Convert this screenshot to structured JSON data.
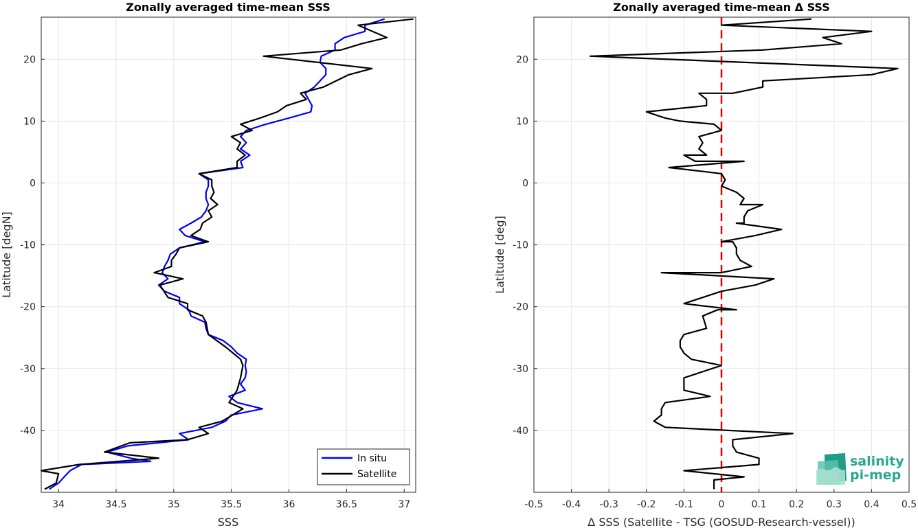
{
  "chart_data": [
    {
      "type": "line",
      "title": "Zonally averaged time-mean SSS",
      "xlabel": "SSS",
      "ylabel": "Latitude [degN]",
      "xlim": [
        33.85,
        37.1
      ],
      "ylim": [
        -50,
        26.8
      ],
      "xticks": [
        "34",
        "34.5",
        "35",
        "35.5",
        "36",
        "36.5",
        "37"
      ],
      "yticks": [
        "-40",
        "-30",
        "-20",
        "-10",
        "0",
        "10",
        "20"
      ],
      "grid": true,
      "legend": "bottom-right",
      "series": [
        {
          "name": "In situ",
          "color": "#0000ff",
          "points": [
            [
              36.83,
              26.5
            ],
            [
              36.66,
              25.5
            ],
            [
              36.66,
              24.5
            ],
            [
              36.48,
              23.5
            ],
            [
              36.4,
              22.5
            ],
            [
              36.4,
              21.5
            ],
            [
              36.28,
              20.5
            ],
            [
              36.27,
              19.5
            ],
            [
              36.32,
              18.5
            ],
            [
              36.32,
              17.5
            ],
            [
              36.27,
              16.5
            ],
            [
              36.22,
              15.5
            ],
            [
              36.14,
              14.5
            ],
            [
              36.17,
              13.5
            ],
            [
              36.2,
              12.5
            ],
            [
              36.19,
              11.5
            ],
            [
              36.0,
              10.5
            ],
            [
              35.8,
              9.5
            ],
            [
              35.63,
              8.5
            ],
            [
              35.58,
              7.5
            ],
            [
              35.63,
              6.5
            ],
            [
              35.58,
              5.5
            ],
            [
              35.66,
              4.5
            ],
            [
              35.58,
              3.5
            ],
            [
              35.6,
              2.5
            ],
            [
              35.22,
              1.5
            ],
            [
              35.3,
              0.5
            ],
            [
              35.3,
              -0.5
            ],
            [
              35.28,
              -1.5
            ],
            [
              35.28,
              -2.5
            ],
            [
              35.3,
              -3.5
            ],
            [
              35.28,
              -4.5
            ],
            [
              35.24,
              -5.5
            ],
            [
              35.15,
              -6.5
            ],
            [
              35.05,
              -7.5
            ],
            [
              35.1,
              -8.5
            ],
            [
              35.27,
              -9.5
            ],
            [
              35.05,
              -10.5
            ],
            [
              34.97,
              -11.5
            ],
            [
              34.95,
              -12.5
            ],
            [
              34.92,
              -13.5
            ],
            [
              34.9,
              -14.5
            ],
            [
              34.95,
              -15.5
            ],
            [
              34.87,
              -16.5
            ],
            [
              34.92,
              -17.5
            ],
            [
              35.05,
              -18.5
            ],
            [
              35.05,
              -19.5
            ],
            [
              35.13,
              -20.5
            ],
            [
              35.15,
              -21.5
            ],
            [
              35.27,
              -22.5
            ],
            [
              35.28,
              -23.5
            ],
            [
              35.3,
              -24.5
            ],
            [
              35.43,
              -25.5
            ],
            [
              35.5,
              -26.5
            ],
            [
              35.55,
              -27.5
            ],
            [
              35.63,
              -28.5
            ],
            [
              35.62,
              -29.5
            ],
            [
              35.63,
              -30.5
            ],
            [
              35.62,
              -31.5
            ],
            [
              35.58,
              -32.5
            ],
            [
              35.62,
              -33.5
            ],
            [
              35.48,
              -34.5
            ],
            [
              35.55,
              -35.5
            ],
            [
              35.77,
              -36.5
            ],
            [
              35.5,
              -37.5
            ],
            [
              35.45,
              -38.5
            ],
            [
              35.33,
              -39.5
            ],
            [
              35.05,
              -40.5
            ],
            [
              35.13,
              -41.5
            ],
            [
              34.6,
              -42.5
            ],
            [
              34.42,
              -43.5
            ],
            [
              34.63,
              -44.5
            ],
            [
              34.8,
              -45.0
            ],
            [
              34.2,
              -45.5
            ],
            [
              34.1,
              -46.5
            ],
            [
              34.05,
              -47.5
            ],
            [
              34.0,
              -48.5
            ],
            [
              33.92,
              -49.5
            ]
          ]
        },
        {
          "name": "Satellite",
          "color": "#000000",
          "points": [
            [
              37.08,
              26.5
            ],
            [
              36.6,
              25.5
            ],
            [
              36.85,
              23.5
            ],
            [
              36.63,
              22.5
            ],
            [
              36.45,
              21.5
            ],
            [
              35.78,
              20.5
            ],
            [
              36.72,
              18.5
            ],
            [
              36.52,
              17.5
            ],
            [
              36.3,
              15.5
            ],
            [
              36.1,
              14.5
            ],
            [
              36.15,
              13.5
            ],
            [
              35.98,
              12.5
            ],
            [
              35.9,
              11.5
            ],
            [
              35.75,
              10.5
            ],
            [
              35.58,
              9.5
            ],
            [
              35.68,
              8.5
            ],
            [
              35.5,
              7.5
            ],
            [
              35.58,
              6.5
            ],
            [
              35.55,
              5.5
            ],
            [
              35.62,
              4.5
            ],
            [
              35.55,
              3.5
            ],
            [
              35.55,
              2.5
            ],
            [
              35.22,
              1.5
            ],
            [
              35.33,
              0.5
            ],
            [
              35.33,
              -0.5
            ],
            [
              35.35,
              -1.5
            ],
            [
              35.32,
              -2.5
            ],
            [
              35.38,
              -3.5
            ],
            [
              35.3,
              -4.5
            ],
            [
              35.33,
              -5.5
            ],
            [
              35.25,
              -6.5
            ],
            [
              35.23,
              -7.5
            ],
            [
              35.15,
              -8.5
            ],
            [
              35.3,
              -9.5
            ],
            [
              35.05,
              -10.5
            ],
            [
              35.02,
              -11.5
            ],
            [
              34.98,
              -12.5
            ],
            [
              34.98,
              -13.5
            ],
            [
              34.83,
              -14.5
            ],
            [
              35.08,
              -15.5
            ],
            [
              34.88,
              -16.5
            ],
            [
              34.95,
              -18.5
            ],
            [
              35.12,
              -19.5
            ],
            [
              35.12,
              -20.5
            ],
            [
              35.25,
              -21.5
            ],
            [
              35.28,
              -22.5
            ],
            [
              35.3,
              -24.5
            ],
            [
              35.45,
              -26.5
            ],
            [
              35.58,
              -28.5
            ],
            [
              35.6,
              -29.5
            ],
            [
              35.58,
              -31.5
            ],
            [
              35.55,
              -33.5
            ],
            [
              35.48,
              -35.5
            ],
            [
              35.6,
              -36.5
            ],
            [
              35.42,
              -38.5
            ],
            [
              35.22,
              -39.5
            ],
            [
              35.3,
              -40.5
            ],
            [
              35.12,
              -41.5
            ],
            [
              34.62,
              -42.0
            ],
            [
              34.4,
              -43.5
            ],
            [
              34.87,
              -44.5
            ],
            [
              34.18,
              -45.5
            ],
            [
              33.85,
              -46.5
            ],
            [
              34.0,
              -47.0
            ],
            [
              33.98,
              -48.5
            ],
            [
              33.88,
              -49.5
            ]
          ]
        }
      ]
    },
    {
      "type": "line",
      "title": "Zonally averaged time-mean Δ SSS",
      "xlabel": "Δ SSS (Satellite - TSG (GOSUD-Research-vessel))",
      "ylabel": "Latitude [deg]",
      "xlim": [
        -0.5,
        0.5
      ],
      "ylim": [
        -50,
        26.8
      ],
      "xticks": [
        "-0.5",
        "-0.4",
        "-0.3",
        "-0.2",
        "-0.1",
        "0",
        "0.1",
        "0.2",
        "0.3",
        "0.4",
        "0.5"
      ],
      "yticks": [
        "-40",
        "-30",
        "-20",
        "-10",
        "0",
        "10",
        "20"
      ],
      "grid": true,
      "zero_line_color": "#e00000",
      "series": [
        {
          "color": "#000000",
          "points": [
            [
              0.24,
              26.5
            ],
            [
              0.0,
              25.5
            ],
            [
              0.4,
              24.5
            ],
            [
              0.27,
              23.5
            ],
            [
              0.32,
              22.5
            ],
            [
              0.11,
              21.5
            ],
            [
              -0.35,
              20.5
            ],
            [
              0.47,
              18.5
            ],
            [
              0.4,
              17.5
            ],
            [
              0.11,
              16.5
            ],
            [
              0.11,
              15.5
            ],
            [
              0.03,
              14.5
            ],
            [
              -0.06,
              14.5
            ],
            [
              -0.04,
              13.5
            ],
            [
              -0.04,
              12.5
            ],
            [
              -0.2,
              11.5
            ],
            [
              -0.15,
              10.5
            ],
            [
              -0.11,
              10.0
            ],
            [
              -0.02,
              9.5
            ],
            [
              0.0,
              8.5
            ],
            [
              -0.06,
              7.5
            ],
            [
              -0.05,
              6.5
            ],
            [
              -0.06,
              5.5
            ],
            [
              -0.04,
              4.5
            ],
            [
              -0.1,
              4.5
            ],
            [
              -0.07,
              3.5
            ],
            [
              0.06,
              3.5
            ],
            [
              -0.14,
              2.5
            ],
            [
              -0.04,
              1.8
            ],
            [
              0.0,
              1.5
            ],
            [
              0.01,
              0.5
            ],
            [
              0.0,
              -0.5
            ],
            [
              0.04,
              -1.5
            ],
            [
              0.06,
              -2.5
            ],
            [
              0.05,
              -3.5
            ],
            [
              0.11,
              -3.5
            ],
            [
              0.07,
              -4.5
            ],
            [
              0.06,
              -5.5
            ],
            [
              0.06,
              -6.5
            ],
            [
              0.04,
              -6.5
            ],
            [
              0.16,
              -7.5
            ],
            [
              0.09,
              -8.5
            ],
            [
              0.0,
              -9.5
            ],
            [
              0.03,
              -9.5
            ],
            [
              0.04,
              -10.5
            ],
            [
              0.04,
              -11.5
            ],
            [
              0.05,
              -12.5
            ],
            [
              0.08,
              -13.5
            ],
            [
              0.0,
              -14.5
            ],
            [
              -0.16,
              -14.5
            ],
            [
              0.14,
              -15.5
            ],
            [
              0.09,
              -16.5
            ],
            [
              0.0,
              -17.5
            ],
            [
              -0.05,
              -18.5
            ],
            [
              -0.1,
              -19.5
            ],
            [
              0.04,
              -20.5
            ],
            [
              -0.01,
              -20.5
            ],
            [
              -0.05,
              -21.5
            ],
            [
              -0.04,
              -23.5
            ],
            [
              -0.1,
              -24.5
            ],
            [
              -0.11,
              -25.5
            ],
            [
              -0.11,
              -26.5
            ],
            [
              -0.1,
              -27.5
            ],
            [
              -0.08,
              -28.5
            ],
            [
              0.0,
              -29.5
            ],
            [
              -0.1,
              -31.5
            ],
            [
              -0.1,
              -33.5
            ],
            [
              -0.03,
              -34.5
            ],
            [
              -0.15,
              -35.5
            ],
            [
              -0.16,
              -36.5
            ],
            [
              -0.16,
              -37.5
            ],
            [
              -0.18,
              -38.5
            ],
            [
              -0.15,
              -39.5
            ],
            [
              0.19,
              -40.5
            ],
            [
              0.03,
              -41.5
            ],
            [
              0.03,
              -42.5
            ],
            [
              0.04,
              -43.5
            ],
            [
              0.1,
              -44.5
            ],
            [
              0.1,
              -45.5
            ],
            [
              0.0,
              -46.0
            ],
            [
              -0.1,
              -46.5
            ],
            [
              0.06,
              -47.5
            ],
            [
              -0.02,
              -48.0
            ],
            [
              -0.02,
              -49.5
            ]
          ]
        }
      ]
    }
  ],
  "legend": {
    "items": [
      "In situ",
      "Satellite"
    ]
  },
  "logo": {
    "line1": "salinity",
    "line2": "pi-mep"
  }
}
